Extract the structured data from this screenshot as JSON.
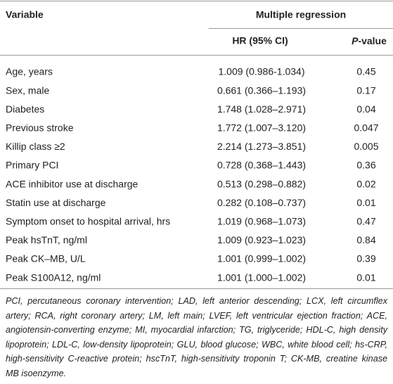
{
  "header": {
    "variable": "Variable",
    "group": "Multiple regression",
    "hr": "HR (95% CI)",
    "p_italic": "P",
    "p_rest": "-value"
  },
  "table": {
    "rows": [
      [
        "Age, years",
        "1.009 (0.986-1.034)",
        "0.45"
      ],
      [
        "Sex, male",
        "0.661 (0.366–1.193)",
        "0.17"
      ],
      [
        "Diabetes",
        "1.748 (1.028–2.971)",
        "0.04"
      ],
      [
        "Previous stroke",
        "1.772 (1.007–3.120)",
        "0.047"
      ],
      [
        "Killip class ≥2",
        "2.214 (1.273–3.851)",
        "0.005"
      ],
      [
        "Primary PCI",
        "0.728 (0.368–1.443)",
        "0.36"
      ],
      [
        "ACE inhibitor use at discharge",
        "0.513 (0.298–0.882)",
        "0.02"
      ],
      [
        "Statin use at discharge",
        "0.282 (0.108–0.737)",
        "0.01"
      ],
      [
        "Symptom onset to hospital arrival, hrs",
        "1.019 (0.968–1.073)",
        "0.47"
      ],
      [
        "Peak hsTnT, ng/ml",
        "1.009 (0.923–1.023)",
        "0.84"
      ],
      [
        "Peak CK–MB, U/L",
        "1.001 (0.999–1.002)",
        "0.39"
      ],
      [
        "Peak S100A12, ng/ml",
        "1.001 (1.000–1.002)",
        "0.01"
      ]
    ]
  },
  "footnote": "PCI, percutaneous coronary intervention; LAD, left anterior descending; LCX, left circumflex artery; RCA, right coronary artery; LM, left main; LVEF, left ventricular ejection fraction; ACE, angiotensin-converting enzyme; MI, myocardial infarction; TG, triglyceride; HDL-C, high density lipoprotein; LDL-C, low-density lipoprotein; GLU, blood glucose; WBC, white blood cell; hs-CRP, high-sensitivity C-reactive protein; hscTnT, high-sensitivity troponin T; CK-MB, creatine kinase MB isoenzyme."
}
